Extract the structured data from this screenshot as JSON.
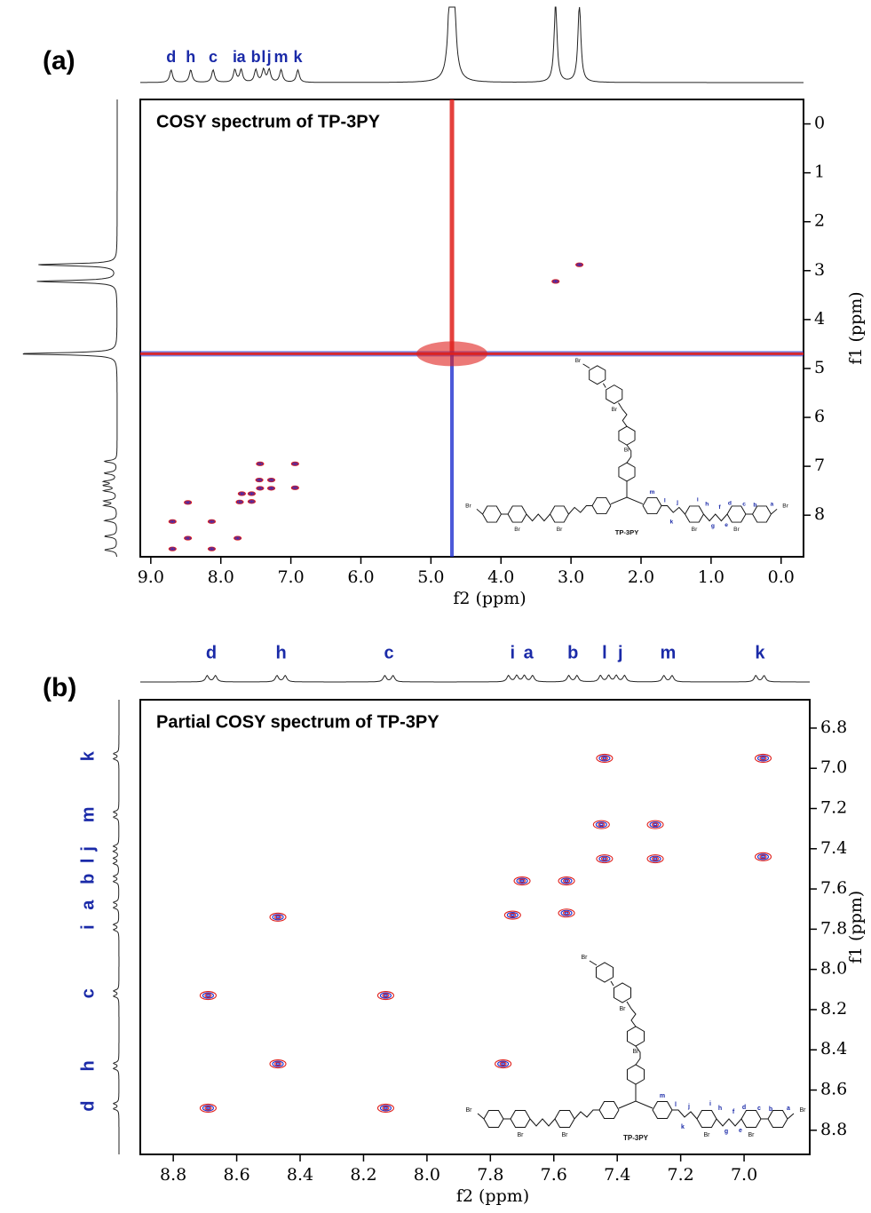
{
  "chart_data": [
    {
      "type": "scatter",
      "panel_label": "(a)",
      "title": "COSY spectrum of TP-3PY",
      "xlabel": "f2 (ppm)",
      "ylabel": "f1 (ppm)",
      "xlim": [
        9.15,
        -0.32
      ],
      "ylim": [
        -0.5,
        8.85
      ],
      "xticks": [
        {
          "value": 9,
          "label": "9.0"
        },
        {
          "value": 8,
          "label": "8.0"
        },
        {
          "value": 7,
          "label": "7.0"
        },
        {
          "value": 6,
          "label": "6.0"
        },
        {
          "value": 5,
          "label": "5.0"
        },
        {
          "value": 4,
          "label": "4.0"
        },
        {
          "value": 3,
          "label": "3.0"
        },
        {
          "value": 2,
          "label": "2.0"
        },
        {
          "value": 1,
          "label": "1.0"
        },
        {
          "value": 0,
          "label": "0.0"
        }
      ],
      "yticks": [
        0,
        1,
        2,
        3,
        4,
        5,
        6,
        7,
        8
      ],
      "top_labels": [
        "d",
        "h",
        "c",
        "i",
        "a",
        "b",
        "l",
        "j",
        "m",
        "k"
      ],
      "top_label_x": [
        8.71,
        8.43,
        8.11,
        7.8,
        7.71,
        7.5,
        7.39,
        7.31,
        7.14,
        6.9
      ],
      "solvent_peak": 4.7,
      "x": [
        8.69,
        8.69,
        8.13,
        8.13,
        8.47,
        8.47,
        7.76,
        7.73,
        7.7,
        7.56,
        7.56,
        7.44,
        7.44,
        7.45,
        7.28,
        7.28,
        6.94,
        6.94,
        3.22,
        2.88
      ],
      "y": [
        8.13,
        8.69,
        8.13,
        8.69,
        7.74,
        8.47,
        8.47,
        7.73,
        7.56,
        7.56,
        7.72,
        6.95,
        7.45,
        7.28,
        7.28,
        7.45,
        6.95,
        7.44,
        3.22,
        2.88
      ],
      "colors": [
        "#e0201c",
        "#2030d0"
      ],
      "molecule": {
        "name": "TP-3PY",
        "counterion": "Br",
        "atom_labels": [
          "a",
          "b",
          "c",
          "d",
          "e",
          "f",
          "g",
          "h",
          "i",
          "j",
          "k",
          "l",
          "m"
        ]
      }
    },
    {
      "type": "scatter",
      "panel_label": "(b)",
      "title": "Partial COSY spectrum of TP-3PY",
      "xlabel": "f2 (ppm)",
      "ylabel": "f1 (ppm)",
      "xlim": [
        8.904,
        6.793
      ],
      "ylim": [
        6.659,
        8.92
      ],
      "xticks": [
        8.8,
        8.6,
        8.4,
        8.2,
        {
          "value": 8,
          "label": "8.0"
        },
        7.8,
        7.6,
        7.4,
        7.2,
        {
          "value": 7,
          "label": "7.0"
        }
      ],
      "yticks": [
        6.8,
        {
          "value": 7,
          "label": "7.0"
        },
        7.2,
        7.4,
        7.6,
        7.8,
        {
          "value": 8,
          "label": "8.0"
        },
        8.2,
        8.4,
        8.6,
        8.8
      ],
      "top_labels": [
        "d",
        "h",
        "c",
        "i",
        "a",
        "b",
        "l",
        "j",
        "m",
        "k"
      ],
      "top_label_x": [
        8.68,
        8.46,
        8.12,
        7.73,
        7.68,
        7.54,
        7.44,
        7.39,
        7.24,
        6.95
      ],
      "side_labels": [
        "k",
        "m",
        "j",
        "l",
        "b",
        "a",
        "i",
        "c",
        "h",
        "d"
      ],
      "side_label_y": [
        6.94,
        7.23,
        7.4,
        7.46,
        7.55,
        7.68,
        7.79,
        8.12,
        8.48,
        8.68
      ],
      "x": [
        8.69,
        8.69,
        8.13,
        8.13,
        8.47,
        8.47,
        7.76,
        7.73,
        7.7,
        7.56,
        7.56,
        7.44,
        7.44,
        7.45,
        7.28,
        7.28,
        6.94,
        6.94
      ],
      "y": [
        8.13,
        8.69,
        8.13,
        8.69,
        7.74,
        8.47,
        8.47,
        7.73,
        7.56,
        7.56,
        7.72,
        6.95,
        7.45,
        7.28,
        7.28,
        7.45,
        6.95,
        7.44
      ],
      "colors": [
        "#e0201c",
        "#2030d0"
      ],
      "molecule": {
        "name": "TP-3PY",
        "counterion": "Br",
        "atom_labels": [
          "a",
          "b",
          "c",
          "d",
          "e",
          "f",
          "g",
          "h",
          "i",
          "j",
          "k",
          "l",
          "m"
        ]
      }
    }
  ]
}
